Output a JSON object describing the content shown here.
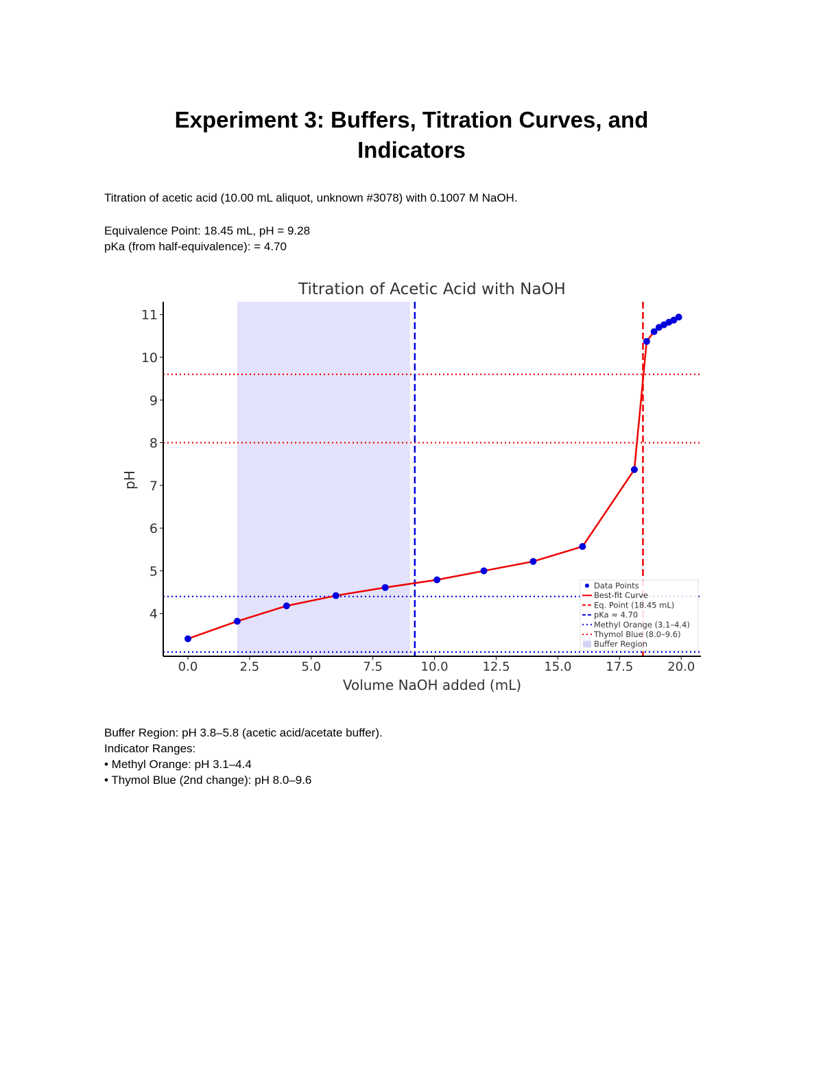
{
  "document": {
    "title_line1": "Experiment 3: Buffers, Titration Curves, and",
    "title_line2": "Indicators",
    "intro": "Titration of acetic acid (10.00 mL aliquot, unknown #3078) with 0.1007 M NaOH.",
    "equivalence": "Equivalence Point: 18.45 mL, pH = 9.28",
    "pka": "pKa (from half-equivalence): = 4.70",
    "buffer_region": "Buffer Region: pH 3.8–5.8 (acetic acid/acetate buffer).",
    "indicator_heading": "Indicator Ranges:",
    "indicator_1": "• Methyl Orange: pH 3.1–4.4",
    "indicator_2": "• Thymol Blue (2nd change): pH 8.0–9.6"
  },
  "chart_data": {
    "type": "line",
    "title": "Titration of Acetic Acid with NaOH",
    "xlabel": "Volume NaOH added (mL)",
    "ylabel": "pH",
    "xlim": [
      -1.0,
      20.8
    ],
    "ylim": [
      3.0,
      11.3
    ],
    "xticks": [
      "0.0",
      "2.5",
      "5.0",
      "7.5",
      "10.0",
      "12.5",
      "15.0",
      "17.5",
      "20.0"
    ],
    "yticks": [
      "4",
      "5",
      "6",
      "7",
      "8",
      "9",
      "10",
      "11"
    ],
    "grid": false,
    "legend_position": "bottom-right",
    "series": [
      {
        "name": "Data Points",
        "color": "#0000dd",
        "x": [
          0.0,
          2.0,
          4.0,
          6.0,
          8.0,
          10.1,
          12.0,
          14.0,
          16.0,
          18.1,
          18.6,
          18.9,
          19.1,
          19.3,
          19.5,
          19.7,
          19.9
        ],
        "y": [
          3.41,
          3.82,
          4.18,
          4.42,
          4.61,
          4.79,
          5.0,
          5.22,
          5.57,
          7.37,
          10.37,
          10.6,
          10.7,
          10.76,
          10.82,
          10.87,
          10.94
        ]
      },
      {
        "name": "Best-fit Curve",
        "color": "#ee0000"
      }
    ],
    "annotations": {
      "eq_point": {
        "label": "Eq. Point (18.45 mL)",
        "x": 18.45,
        "color": "#ee0000"
      },
      "pka_line": {
        "label": "pKa ≈ 4.70",
        "x": 9.2,
        "color": "#0000dd"
      },
      "methyl_orange": {
        "label": "Methyl Orange (3.1–4.4)",
        "y": [
          3.1,
          4.4
        ],
        "color": "#0000dd"
      },
      "thymol_blue": {
        "label": "Thymol Blue (8.0–9.6)",
        "y": [
          8.0,
          9.6
        ],
        "color": "#ee0000"
      },
      "buffer_region": {
        "label": "Buffer Region",
        "x": [
          2.0,
          9.0
        ],
        "color": "#e2e2fa"
      }
    }
  }
}
